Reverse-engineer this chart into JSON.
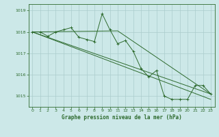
{
  "background_color": "#cce8e8",
  "grid_color": "#aacccc",
  "line_color": "#2d6a2d",
  "xlabel": "Graphe pression niveau de la mer (hPa)",
  "ylim": [
    1014.5,
    1019.3
  ],
  "xlim": [
    -0.5,
    23.5
  ],
  "yticks": [
    1015,
    1016,
    1017,
    1018,
    1019
  ],
  "xticks": [
    0,
    1,
    2,
    3,
    4,
    5,
    6,
    7,
    8,
    9,
    10,
    11,
    12,
    13,
    14,
    15,
    16,
    17,
    18,
    19,
    20,
    21,
    22,
    23
  ],
  "series1": [
    1018.0,
    1018.0,
    1017.8,
    1018.0,
    1018.1,
    1018.2,
    1017.75,
    1017.65,
    1017.55,
    1018.85,
    1018.1,
    1017.45,
    1017.6,
    1017.1,
    1016.3,
    1015.9,
    1016.2,
    1015.0,
    1014.85,
    1014.85,
    1014.85,
    1015.5,
    1015.5,
    1015.1
  ],
  "series2_x": [
    0,
    23
  ],
  "series2_y": [
    1018.0,
    1015.1
  ],
  "series3_x": [
    0,
    23
  ],
  "series3_y": [
    1018.0,
    1014.85
  ],
  "series4_x": [
    0,
    11,
    23
  ],
  "series4_y": [
    1018.0,
    1018.05,
    1015.1
  ]
}
